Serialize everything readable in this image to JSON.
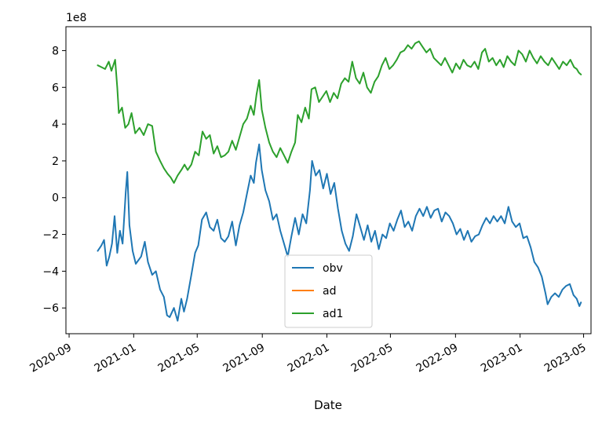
{
  "chart_data": {
    "type": "line",
    "xlabel": "Date",
    "ylabel": "",
    "offset_label": "1e8",
    "xlim": [
      "2020-08-26",
      "2023-05-15"
    ],
    "ylim": [
      -7.4,
      9.3
    ],
    "x_ticks": [
      "2020-09",
      "2021-01",
      "2021-05",
      "2021-09",
      "2022-01",
      "2022-05",
      "2022-09",
      "2023-01",
      "2023-05"
    ],
    "y_ticks": [
      -6,
      -4,
      -2,
      0,
      2,
      4,
      6,
      8
    ],
    "legend": {
      "placement": "lower center",
      "entries": [
        "obv",
        "ad",
        "ad1"
      ]
    },
    "grid": false,
    "series": [
      {
        "name": "obv",
        "color": "#1f77b4",
        "points": [
          [
            "2020-10-25",
            -2.9
          ],
          [
            "2020-11-01",
            -2.6
          ],
          [
            "2020-11-06",
            -2.3
          ],
          [
            "2020-11-11",
            -3.7
          ],
          [
            "2020-11-16",
            -3.2
          ],
          [
            "2020-11-21",
            -2.5
          ],
          [
            "2020-11-26",
            -1.0
          ],
          [
            "2020-12-01",
            -3.0
          ],
          [
            "2020-12-06",
            -1.8
          ],
          [
            "2020-12-11",
            -2.5
          ],
          [
            "2020-12-17",
            0.3
          ],
          [
            "2020-12-20",
            1.4
          ],
          [
            "2020-12-24",
            -1.5
          ],
          [
            "2020-12-30",
            -2.9
          ],
          [
            "2021-01-05",
            -3.6
          ],
          [
            "2021-01-15",
            -3.2
          ],
          [
            "2021-01-22",
            -2.4
          ],
          [
            "2021-01-28",
            -3.5
          ],
          [
            "2021-02-05",
            -4.2
          ],
          [
            "2021-02-12",
            -4.0
          ],
          [
            "2021-02-20",
            -5.0
          ],
          [
            "2021-02-27",
            -5.4
          ],
          [
            "2021-03-05",
            -6.4
          ],
          [
            "2021-03-10",
            -6.5
          ],
          [
            "2021-03-18",
            -6.0
          ],
          [
            "2021-03-25",
            -6.7
          ],
          [
            "2021-04-01",
            -5.5
          ],
          [
            "2021-04-06",
            -6.2
          ],
          [
            "2021-04-12",
            -5.5
          ],
          [
            "2021-04-20",
            -4.2
          ],
          [
            "2021-04-27",
            -3.0
          ],
          [
            "2021-05-03",
            -2.6
          ],
          [
            "2021-05-10",
            -1.2
          ],
          [
            "2021-05-18",
            -0.8
          ],
          [
            "2021-05-25",
            -1.6
          ],
          [
            "2021-06-01",
            -1.8
          ],
          [
            "2021-06-08",
            -1.2
          ],
          [
            "2021-06-15",
            -2.2
          ],
          [
            "2021-06-22",
            -2.4
          ],
          [
            "2021-06-29",
            -2.1
          ],
          [
            "2021-07-06",
            -1.3
          ],
          [
            "2021-07-13",
            -2.6
          ],
          [
            "2021-07-20",
            -1.5
          ],
          [
            "2021-07-27",
            -0.8
          ],
          [
            "2021-08-03",
            0.2
          ],
          [
            "2021-08-10",
            1.2
          ],
          [
            "2021-08-16",
            0.8
          ],
          [
            "2021-08-20",
            1.9
          ],
          [
            "2021-08-26",
            2.9
          ],
          [
            "2021-08-31",
            1.5
          ],
          [
            "2021-09-07",
            0.4
          ],
          [
            "2021-09-14",
            -0.2
          ],
          [
            "2021-09-21",
            -1.2
          ],
          [
            "2021-09-28",
            -0.9
          ],
          [
            "2021-10-05",
            -1.8
          ],
          [
            "2021-10-12",
            -2.5
          ],
          [
            "2021-10-19",
            -3.2
          ],
          [
            "2021-10-26",
            -2.1
          ],
          [
            "2021-11-02",
            -1.1
          ],
          [
            "2021-11-09",
            -2.0
          ],
          [
            "2021-11-16",
            -0.9
          ],
          [
            "2021-11-23",
            -1.4
          ],
          [
            "2021-11-30",
            0.4
          ],
          [
            "2021-12-04",
            2.0
          ],
          [
            "2021-12-11",
            1.2
          ],
          [
            "2021-12-18",
            1.5
          ],
          [
            "2021-12-25",
            0.5
          ],
          [
            "2022-01-01",
            1.3
          ],
          [
            "2022-01-08",
            0.2
          ],
          [
            "2022-01-15",
            0.8
          ],
          [
            "2022-01-22",
            -0.6
          ],
          [
            "2022-01-29",
            -1.8
          ],
          [
            "2022-02-05",
            -2.5
          ],
          [
            "2022-02-12",
            -2.9
          ],
          [
            "2022-02-19",
            -2.1
          ],
          [
            "2022-02-26",
            -0.9
          ],
          [
            "2022-03-05",
            -1.6
          ],
          [
            "2022-03-12",
            -2.3
          ],
          [
            "2022-03-19",
            -1.5
          ],
          [
            "2022-03-26",
            -2.4
          ],
          [
            "2022-04-02",
            -1.8
          ],
          [
            "2022-04-09",
            -2.8
          ],
          [
            "2022-04-16",
            -2.0
          ],
          [
            "2022-04-23",
            -2.2
          ],
          [
            "2022-04-30",
            -1.4
          ],
          [
            "2022-05-07",
            -1.8
          ],
          [
            "2022-05-14",
            -1.2
          ],
          [
            "2022-05-21",
            -0.7
          ],
          [
            "2022-05-28",
            -1.6
          ],
          [
            "2022-06-04",
            -1.3
          ],
          [
            "2022-06-11",
            -1.8
          ],
          [
            "2022-06-18",
            -1.0
          ],
          [
            "2022-06-25",
            -0.6
          ],
          [
            "2022-07-02",
            -1.0
          ],
          [
            "2022-07-09",
            -0.5
          ],
          [
            "2022-07-16",
            -1.1
          ],
          [
            "2022-07-23",
            -0.7
          ],
          [
            "2022-07-30",
            -0.6
          ],
          [
            "2022-08-06",
            -1.3
          ],
          [
            "2022-08-13",
            -0.8
          ],
          [
            "2022-08-20",
            -1.0
          ],
          [
            "2022-08-27",
            -1.4
          ],
          [
            "2022-09-03",
            -2.0
          ],
          [
            "2022-09-10",
            -1.7
          ],
          [
            "2022-09-17",
            -2.3
          ],
          [
            "2022-09-24",
            -1.8
          ],
          [
            "2022-10-01",
            -2.4
          ],
          [
            "2022-10-08",
            -2.1
          ],
          [
            "2022-10-15",
            -2.0
          ],
          [
            "2022-10-22",
            -1.5
          ],
          [
            "2022-10-29",
            -1.1
          ],
          [
            "2022-11-05",
            -1.4
          ],
          [
            "2022-11-12",
            -1.0
          ],
          [
            "2022-11-19",
            -1.3
          ],
          [
            "2022-11-26",
            -1.0
          ],
          [
            "2022-12-03",
            -1.4
          ],
          [
            "2022-12-10",
            -0.5
          ],
          [
            "2022-12-17",
            -1.3
          ],
          [
            "2022-12-24",
            -1.6
          ],
          [
            "2022-12-31",
            -1.4
          ],
          [
            "2023-01-07",
            -2.2
          ],
          [
            "2023-01-14",
            -2.1
          ],
          [
            "2023-01-21",
            -2.7
          ],
          [
            "2023-01-28",
            -3.5
          ],
          [
            "2023-02-04",
            -3.8
          ],
          [
            "2023-02-11",
            -4.3
          ],
          [
            "2023-02-18",
            -5.2
          ],
          [
            "2023-02-22",
            -5.8
          ],
          [
            "2023-03-01",
            -5.4
          ],
          [
            "2023-03-08",
            -5.2
          ],
          [
            "2023-03-15",
            -5.4
          ],
          [
            "2023-03-22",
            -5.0
          ],
          [
            "2023-03-29",
            -4.8
          ],
          [
            "2023-04-05",
            -4.7
          ],
          [
            "2023-04-12",
            -5.3
          ],
          [
            "2023-04-18",
            -5.5
          ],
          [
            "2023-04-23",
            -5.9
          ],
          [
            "2023-04-26",
            -5.7
          ]
        ]
      },
      {
        "name": "ad",
        "color": "#ff7f0e",
        "points": []
      },
      {
        "name": "ad1",
        "color": "#2ca02c",
        "points": [
          [
            "2020-10-25",
            7.2
          ],
          [
            "2020-11-01",
            7.1
          ],
          [
            "2020-11-08",
            7.0
          ],
          [
            "2020-11-15",
            7.4
          ],
          [
            "2020-11-20",
            6.9
          ],
          [
            "2020-11-27",
            7.5
          ],
          [
            "2020-12-01",
            6.0
          ],
          [
            "2020-12-04",
            4.6
          ],
          [
            "2020-12-10",
            4.9
          ],
          [
            "2020-12-16",
            3.8
          ],
          [
            "2020-12-22",
            4.0
          ],
          [
            "2020-12-28",
            4.6
          ],
          [
            "2021-01-04",
            3.5
          ],
          [
            "2021-01-12",
            3.8
          ],
          [
            "2021-01-20",
            3.4
          ],
          [
            "2021-01-28",
            4.0
          ],
          [
            "2021-02-05",
            3.9
          ],
          [
            "2021-02-12",
            2.5
          ],
          [
            "2021-02-20",
            2.0
          ],
          [
            "2021-02-27",
            1.6
          ],
          [
            "2021-03-06",
            1.3
          ],
          [
            "2021-03-12",
            1.1
          ],
          [
            "2021-03-18",
            0.8
          ],
          [
            "2021-03-25",
            1.2
          ],
          [
            "2021-04-01",
            1.5
          ],
          [
            "2021-04-07",
            1.8
          ],
          [
            "2021-04-13",
            1.5
          ],
          [
            "2021-04-20",
            1.8
          ],
          [
            "2021-04-27",
            2.5
          ],
          [
            "2021-05-04",
            2.3
          ],
          [
            "2021-05-11",
            3.6
          ],
          [
            "2021-05-18",
            3.2
          ],
          [
            "2021-05-25",
            3.4
          ],
          [
            "2021-06-01",
            2.4
          ],
          [
            "2021-06-08",
            2.8
          ],
          [
            "2021-06-15",
            2.2
          ],
          [
            "2021-06-22",
            2.3
          ],
          [
            "2021-06-29",
            2.5
          ],
          [
            "2021-07-06",
            3.1
          ],
          [
            "2021-07-13",
            2.6
          ],
          [
            "2021-07-20",
            3.3
          ],
          [
            "2021-07-27",
            4.0
          ],
          [
            "2021-08-03",
            4.3
          ],
          [
            "2021-08-10",
            5.0
          ],
          [
            "2021-08-16",
            4.5
          ],
          [
            "2021-08-21",
            5.6
          ],
          [
            "2021-08-26",
            6.4
          ],
          [
            "2021-08-31",
            4.8
          ],
          [
            "2021-09-07",
            3.8
          ],
          [
            "2021-09-14",
            3.0
          ],
          [
            "2021-09-21",
            2.5
          ],
          [
            "2021-09-28",
            2.2
          ],
          [
            "2021-10-05",
            2.7
          ],
          [
            "2021-10-12",
            2.3
          ],
          [
            "2021-10-19",
            1.9
          ],
          [
            "2021-10-26",
            2.5
          ],
          [
            "2021-11-02",
            3.0
          ],
          [
            "2021-11-07",
            4.5
          ],
          [
            "2021-11-14",
            4.1
          ],
          [
            "2021-11-21",
            4.9
          ],
          [
            "2021-11-28",
            4.3
          ],
          [
            "2021-12-03",
            5.9
          ],
          [
            "2021-12-10",
            6.0
          ],
          [
            "2021-12-17",
            5.2
          ],
          [
            "2021-12-24",
            5.5
          ],
          [
            "2021-12-31",
            5.8
          ],
          [
            "2022-01-07",
            5.2
          ],
          [
            "2022-01-14",
            5.7
          ],
          [
            "2022-01-21",
            5.4
          ],
          [
            "2022-01-28",
            6.2
          ],
          [
            "2022-02-04",
            6.5
          ],
          [
            "2022-02-11",
            6.3
          ],
          [
            "2022-02-18",
            7.4
          ],
          [
            "2022-02-25",
            6.5
          ],
          [
            "2022-03-04",
            6.2
          ],
          [
            "2022-03-11",
            6.8
          ],
          [
            "2022-03-18",
            6.0
          ],
          [
            "2022-03-25",
            5.7
          ],
          [
            "2022-04-01",
            6.3
          ],
          [
            "2022-04-08",
            6.6
          ],
          [
            "2022-04-15",
            7.2
          ],
          [
            "2022-04-22",
            7.6
          ],
          [
            "2022-04-29",
            7.0
          ],
          [
            "2022-05-06",
            7.2
          ],
          [
            "2022-05-13",
            7.5
          ],
          [
            "2022-05-20",
            7.9
          ],
          [
            "2022-05-27",
            8.0
          ],
          [
            "2022-06-03",
            8.3
          ],
          [
            "2022-06-10",
            8.1
          ],
          [
            "2022-06-17",
            8.4
          ],
          [
            "2022-06-24",
            8.5
          ],
          [
            "2022-07-01",
            8.2
          ],
          [
            "2022-07-08",
            7.9
          ],
          [
            "2022-07-15",
            8.1
          ],
          [
            "2022-07-22",
            7.6
          ],
          [
            "2022-07-29",
            7.4
          ],
          [
            "2022-08-05",
            7.2
          ],
          [
            "2022-08-12",
            7.6
          ],
          [
            "2022-08-19",
            7.2
          ],
          [
            "2022-08-26",
            6.8
          ],
          [
            "2022-09-02",
            7.3
          ],
          [
            "2022-09-09",
            7.0
          ],
          [
            "2022-09-16",
            7.5
          ],
          [
            "2022-09-23",
            7.2
          ],
          [
            "2022-09-30",
            7.1
          ],
          [
            "2022-10-07",
            7.4
          ],
          [
            "2022-10-14",
            7.0
          ],
          [
            "2022-10-21",
            7.9
          ],
          [
            "2022-10-27",
            8.1
          ],
          [
            "2022-11-03",
            7.4
          ],
          [
            "2022-11-10",
            7.6
          ],
          [
            "2022-11-17",
            7.2
          ],
          [
            "2022-11-24",
            7.5
          ],
          [
            "2022-12-01",
            7.1
          ],
          [
            "2022-12-08",
            7.7
          ],
          [
            "2022-12-15",
            7.4
          ],
          [
            "2022-12-22",
            7.2
          ],
          [
            "2022-12-29",
            8.0
          ],
          [
            "2023-01-05",
            7.8
          ],
          [
            "2023-01-12",
            7.4
          ],
          [
            "2023-01-19",
            8.0
          ],
          [
            "2023-01-26",
            7.6
          ],
          [
            "2023-02-02",
            7.3
          ],
          [
            "2023-02-09",
            7.7
          ],
          [
            "2023-02-16",
            7.4
          ],
          [
            "2023-02-23",
            7.2
          ],
          [
            "2023-03-02",
            7.6
          ],
          [
            "2023-03-09",
            7.3
          ],
          [
            "2023-03-16",
            7.0
          ],
          [
            "2023-03-23",
            7.4
          ],
          [
            "2023-03-30",
            7.2
          ],
          [
            "2023-04-06",
            7.5
          ],
          [
            "2023-04-13",
            7.1
          ],
          [
            "2023-04-18",
            7.0
          ],
          [
            "2023-04-22",
            6.8
          ],
          [
            "2023-04-26",
            6.7
          ]
        ]
      }
    ]
  }
}
